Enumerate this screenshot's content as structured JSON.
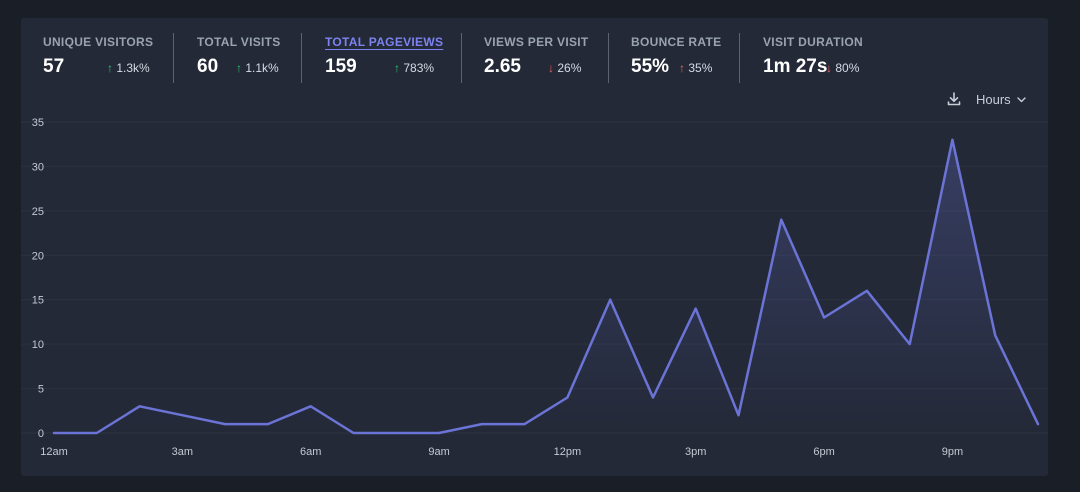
{
  "stats": [
    {
      "label": "UNIQUE VISITORS",
      "value": "57",
      "change": "1.3k%",
      "direction": "up",
      "active": false
    },
    {
      "label": "TOTAL VISITS",
      "value": "60",
      "change": "1.1k%",
      "direction": "up",
      "active": false
    },
    {
      "label": "TOTAL PAGEVIEWS",
      "value": "159",
      "change": "783%",
      "direction": "up",
      "active": true
    },
    {
      "label": "VIEWS PER VISIT",
      "value": "2.65",
      "change": "26%",
      "direction": "down",
      "active": false
    },
    {
      "label": "BOUNCE RATE",
      "value": "55%",
      "change": "35%",
      "direction": "up",
      "active": false
    },
    {
      "label": "VISIT DURATION",
      "value": "1m 27s",
      "change": "80%",
      "direction": "down",
      "active": false
    }
  ],
  "toolbar": {
    "download_icon": "download-icon",
    "interval_label": "Hours",
    "interval_icon": "chevron-down-icon"
  },
  "colors": {
    "accent": "#6b74d6",
    "positive": "#2fbf71",
    "negative": "#f06060"
  },
  "chart_data": {
    "type": "area",
    "x": [
      "12am",
      "1am",
      "2am",
      "3am",
      "4am",
      "5am",
      "6am",
      "7am",
      "8am",
      "9am",
      "10am",
      "11am",
      "12pm",
      "1pm",
      "2pm",
      "3pm",
      "4pm",
      "5pm",
      "6pm",
      "7pm",
      "8pm",
      "9pm",
      "10pm",
      "11pm"
    ],
    "x_tick_labels": [
      "12am",
      "3am",
      "6am",
      "9am",
      "12pm",
      "3pm",
      "6pm",
      "9pm"
    ],
    "series": [
      {
        "values": [
          0,
          0,
          3,
          2,
          1,
          1,
          3,
          0,
          0,
          0,
          1,
          1,
          4,
          15,
          4,
          14,
          2,
          24,
          13,
          16,
          10,
          33,
          11,
          1
        ]
      }
    ],
    "y_ticks": [
      0,
      5,
      10,
      15,
      20,
      25,
      30,
      35
    ],
    "ylim": [
      0,
      35
    ],
    "grid": true,
    "legend": "none"
  }
}
